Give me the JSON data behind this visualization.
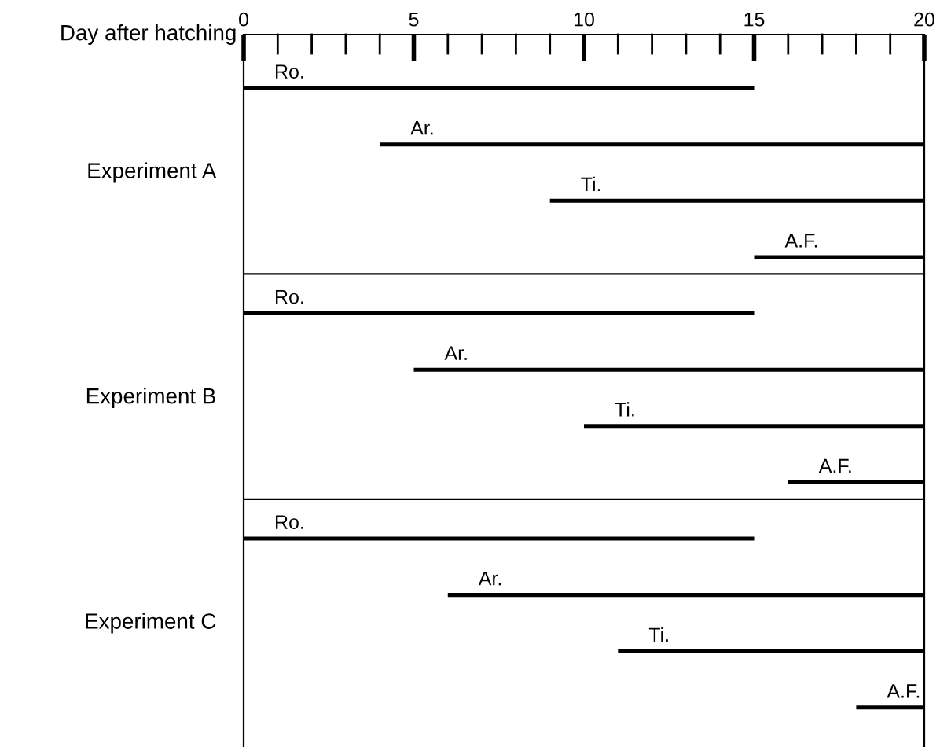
{
  "chart_data": {
    "type": "bar",
    "orientation": "horizontal",
    "xlabel": "Day after hatching",
    "categories": [
      "Ro.",
      "Ar.",
      "Ti.",
      "A.F.",
      "Ro.",
      "Ar.",
      "Ti.",
      "A.F.",
      "Ro.",
      "Ar.",
      "Ti.",
      "A.F."
    ],
    "base": [
      0,
      4,
      9,
      15,
      0,
      5,
      10,
      16,
      0,
      6,
      11,
      18
    ],
    "values": [
      15,
      16,
      11,
      5,
      15,
      15,
      10,
      4,
      15,
      14,
      9,
      2
    ],
    "color": "#000000",
    "annotations": [
      "Experiment A",
      "Experiment B",
      "Experiment C"
    ],
    "xlim": [
      0,
      20
    ],
    "xticks": [
      0,
      5,
      10,
      15,
      20
    ],
    "grid": false
  }
}
